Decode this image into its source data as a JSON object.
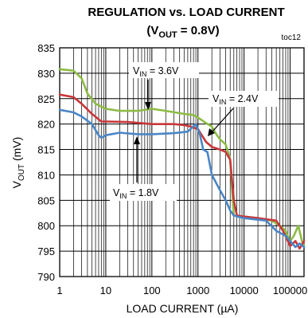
{
  "chart_data": {
    "type": "line",
    "title": "REGULATION vs. LOAD CURRENT",
    "subtitle": {
      "prefix": "(V",
      "subscript": "OUT",
      "suffix": " = 0.8V)"
    },
    "tag": "toc12",
    "xlabel": "LOAD CURRENT (µA)",
    "ylabel": {
      "main": "V",
      "subscript": "OUT",
      "suffix": " (mV)"
    },
    "xscale": "log",
    "xlim": [
      1,
      200000
    ],
    "ylim": [
      790,
      835
    ],
    "grid": true,
    "x_ticks": [
      {
        "value": 1,
        "label": "1"
      },
      {
        "value": 10,
        "label": "10"
      },
      {
        "value": 100,
        "label": "100"
      },
      {
        "value": 1000,
        "label": "1000"
      },
      {
        "value": 10000,
        "label": "10000"
      },
      {
        "value": 100000,
        "label": "100000"
      }
    ],
    "y_ticks": [
      790,
      795,
      800,
      805,
      810,
      815,
      820,
      825,
      830,
      835
    ],
    "series": [
      {
        "name": "V_IN = 3.6V",
        "color": "#8dbb44",
        "points": [
          [
            1,
            830.8
          ],
          [
            2,
            830.5
          ],
          [
            3,
            829
          ],
          [
            4,
            826
          ],
          [
            6,
            824
          ],
          [
            10,
            823
          ],
          [
            20,
            822.6
          ],
          [
            50,
            822.6
          ],
          [
            100,
            823
          ],
          [
            200,
            822.6
          ],
          [
            500,
            822
          ],
          [
            800,
            821.8
          ],
          [
            1000,
            821.3
          ],
          [
            1500,
            820.2
          ],
          [
            2000,
            819.5
          ],
          [
            2500,
            818
          ],
          [
            3000,
            817
          ],
          [
            4000,
            816
          ],
          [
            5000,
            813
          ],
          [
            6000,
            802
          ],
          [
            10000,
            801.8
          ],
          [
            20000,
            801.5
          ],
          [
            40000,
            801
          ],
          [
            60000,
            800
          ],
          [
            80000,
            799
          ],
          [
            100000,
            797
          ],
          [
            120000,
            798
          ],
          [
            150000,
            800
          ],
          [
            180000,
            797
          ],
          [
            200000,
            796
          ]
        ]
      },
      {
        "name": "V_IN = 2.4V",
        "color": "#c8373a",
        "points": [
          [
            1,
            825.8
          ],
          [
            2,
            825.3
          ],
          [
            3,
            824
          ],
          [
            5,
            822
          ],
          [
            8,
            820.5
          ],
          [
            10,
            820.5
          ],
          [
            30,
            820.4
          ],
          [
            100,
            820
          ],
          [
            300,
            820
          ],
          [
            500,
            819.8
          ],
          [
            700,
            819.5
          ],
          [
            1000,
            819
          ],
          [
            1500,
            816.5
          ],
          [
            2000,
            815.5
          ],
          [
            3000,
            815
          ],
          [
            4000,
            814.5
          ],
          [
            5000,
            813
          ],
          [
            6000,
            805
          ],
          [
            7000,
            802
          ],
          [
            10000,
            801.8
          ],
          [
            20000,
            801.5
          ],
          [
            50000,
            801
          ],
          [
            70000,
            799
          ],
          [
            100000,
            796
          ],
          [
            130000,
            797
          ],
          [
            160000,
            795.5
          ],
          [
            200000,
            797
          ]
        ]
      },
      {
        "name": "V_IN = 1.8V",
        "color": "#4a86c6",
        "points": [
          [
            1,
            822.8
          ],
          [
            2,
            822.3
          ],
          [
            3,
            821.5
          ],
          [
            5,
            820
          ],
          [
            7,
            817.8
          ],
          [
            8,
            817.3
          ],
          [
            10,
            817.8
          ],
          [
            20,
            818.3
          ],
          [
            50,
            818
          ],
          [
            100,
            818
          ],
          [
            300,
            818.2
          ],
          [
            600,
            818.5
          ],
          [
            900,
            820
          ],
          [
            1100,
            818
          ],
          [
            1300,
            815
          ],
          [
            1600,
            814.5
          ],
          [
            2000,
            810
          ],
          [
            3000,
            807
          ],
          [
            4000,
            805
          ],
          [
            5000,
            803
          ],
          [
            6000,
            802
          ],
          [
            10000,
            801.5
          ],
          [
            30000,
            801
          ],
          [
            50000,
            799
          ],
          [
            80000,
            798
          ],
          [
            100000,
            797
          ],
          [
            130000,
            795.8
          ],
          [
            160000,
            796.5
          ],
          [
            200000,
            795.8
          ]
        ]
      }
    ],
    "annotations": {
      "a36": {
        "prefix": "V",
        "sub": "IN",
        "suffix": " = 3.6V"
      },
      "a24": {
        "prefix": "V",
        "sub": "IN",
        "suffix": " = 2.4V"
      },
      "a18": {
        "prefix": "V",
        "sub": "IN",
        "suffix": " = 1.8V"
      }
    }
  }
}
